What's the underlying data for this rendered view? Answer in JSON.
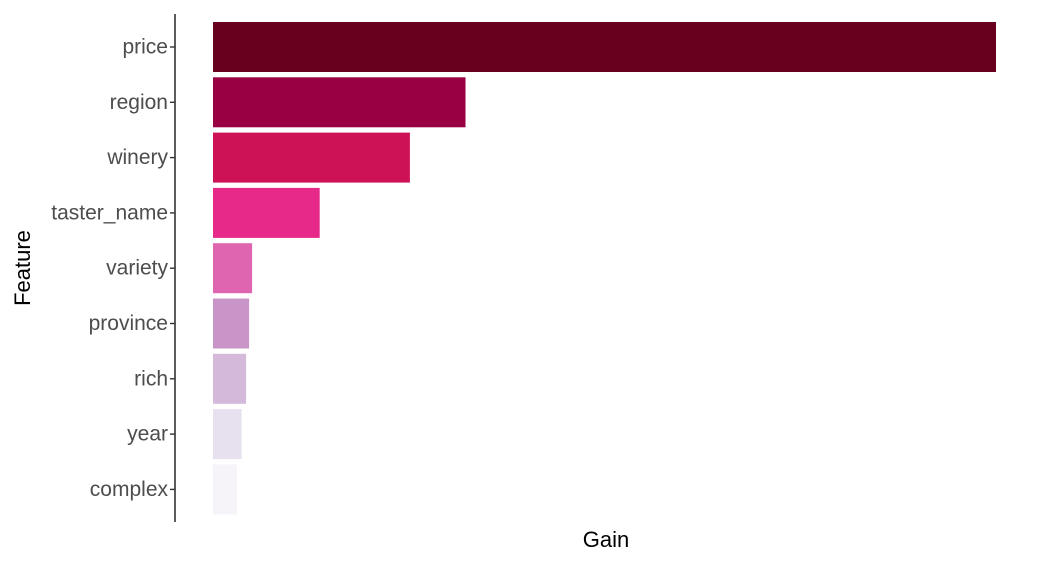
{
  "chart_data": {
    "type": "bar",
    "orientation": "horizontal",
    "title": "",
    "xlabel": "Gain",
    "ylabel": "Feature",
    "categories": [
      "price",
      "region",
      "winery",
      "taster_name",
      "variety",
      "province",
      "rich",
      "year",
      "complex"
    ],
    "values": [
      0.521,
      0.168,
      0.131,
      0.071,
      0.026,
      0.024,
      0.022,
      0.019,
      0.016
    ],
    "xlim": [
      0,
      0.55
    ],
    "x_ticks_shown": false,
    "grid": false,
    "legend": "none",
    "colors": [
      "#67001f",
      "#980043",
      "#ce1256",
      "#e7298a",
      "#df65b0",
      "#c994c7",
      "#d4b9da",
      "#e7e1ef",
      "#f7f4f9"
    ]
  }
}
